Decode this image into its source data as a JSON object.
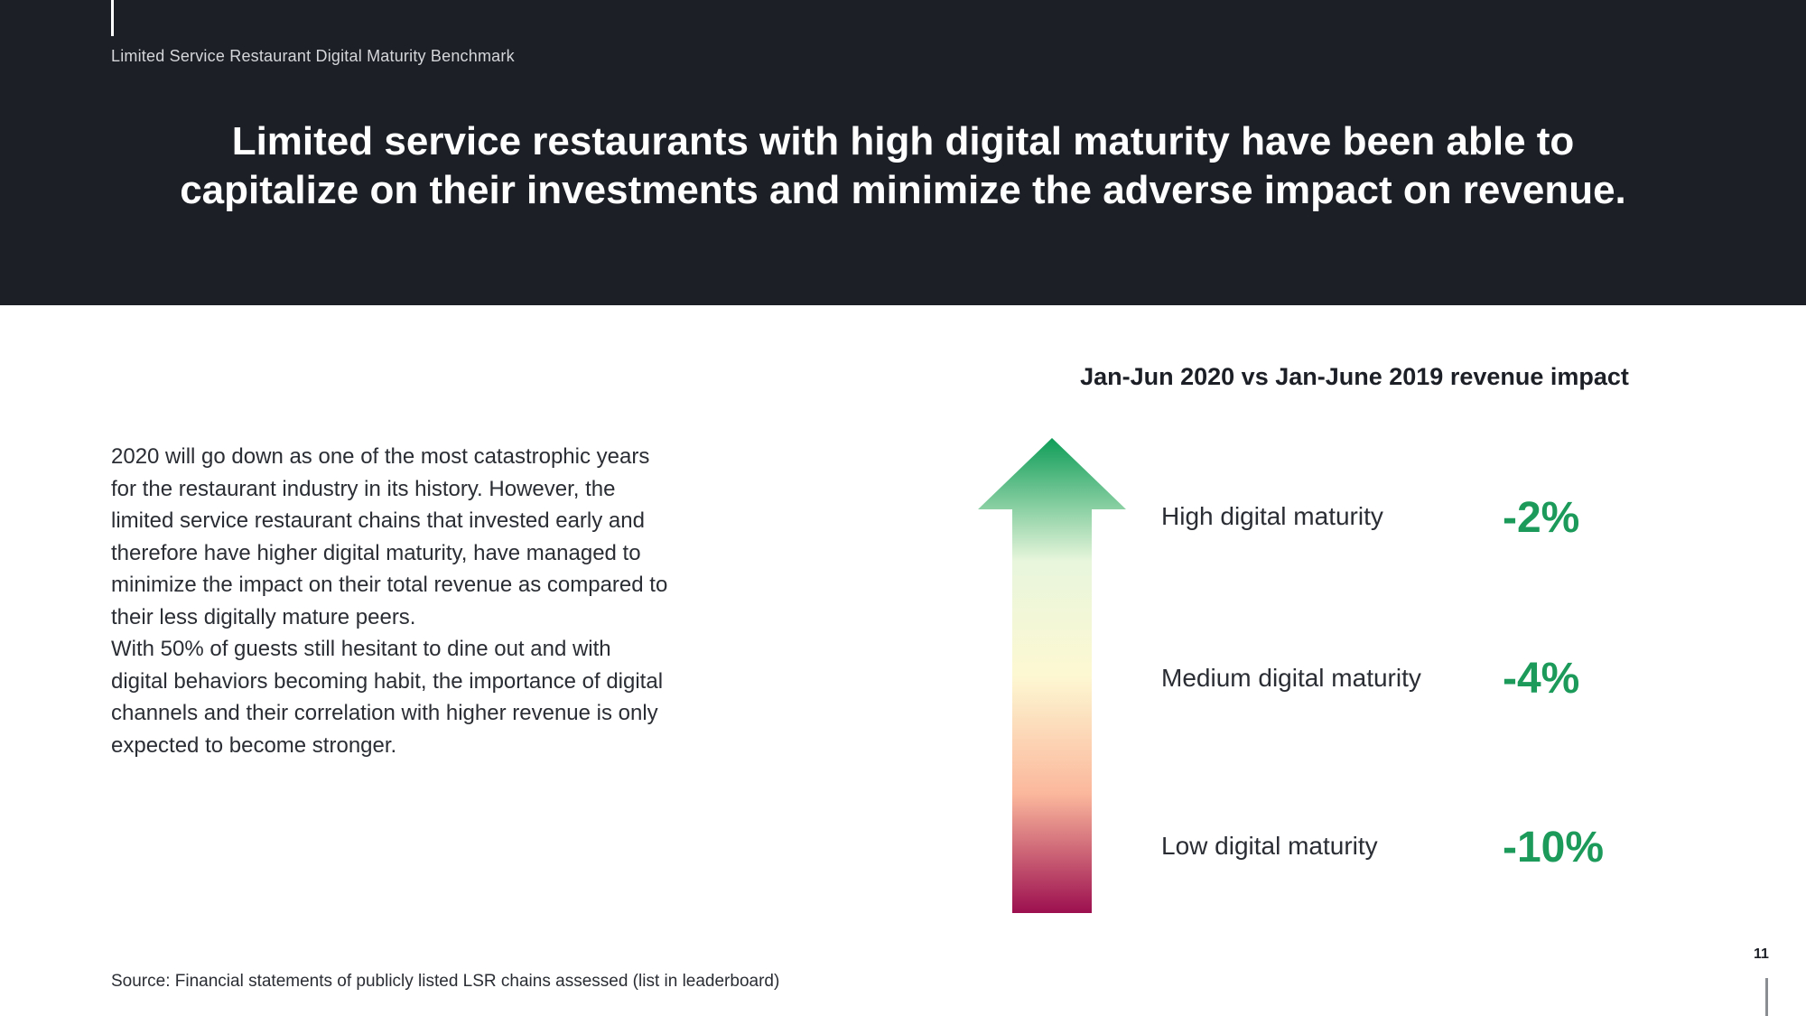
{
  "header": {
    "doc_label": "Limited Service Restaurant Digital Maturity Benchmark",
    "headline_line1": "Limited service restaurants with high digital maturity have been able to",
    "headline_line2": "capitalize on their investments and minimize the adverse impact on revenue."
  },
  "body": {
    "paragraph1": "2020 will go down as one of the most catastrophic years for the restaurant industry in its history. However, the limited service restaurant chains that invested early and therefore have higher digital maturity, have managed to minimize the impact on their total revenue as compared to their less digitally mature peers.",
    "paragraph2": "With 50% of guests still hesitant to dine out and with digital behaviors becoming habit, the importance of digital channels and their correlation with higher revenue is only expected to become stronger."
  },
  "chart": {
    "title": "Jan-Jun 2020 vs Jan-June 2019 revenue impact",
    "gradient_colors": [
      "#0f9d58",
      "#e8f6dc",
      "#fdf8d2",
      "#fbb79c",
      "#9c0f4f"
    ],
    "rows": [
      {
        "label": "High digital maturity",
        "value": "-2%"
      },
      {
        "label": "Medium digital maturity",
        "value": "-4%"
      },
      {
        "label": "Low digital maturity",
        "value": "-10%"
      }
    ],
    "value_color": "#1b9a5a"
  },
  "footer": {
    "source": "Source: Financial statements of publicly listed LSR chains assessed (list in leaderboard)",
    "page_number": "11"
  }
}
